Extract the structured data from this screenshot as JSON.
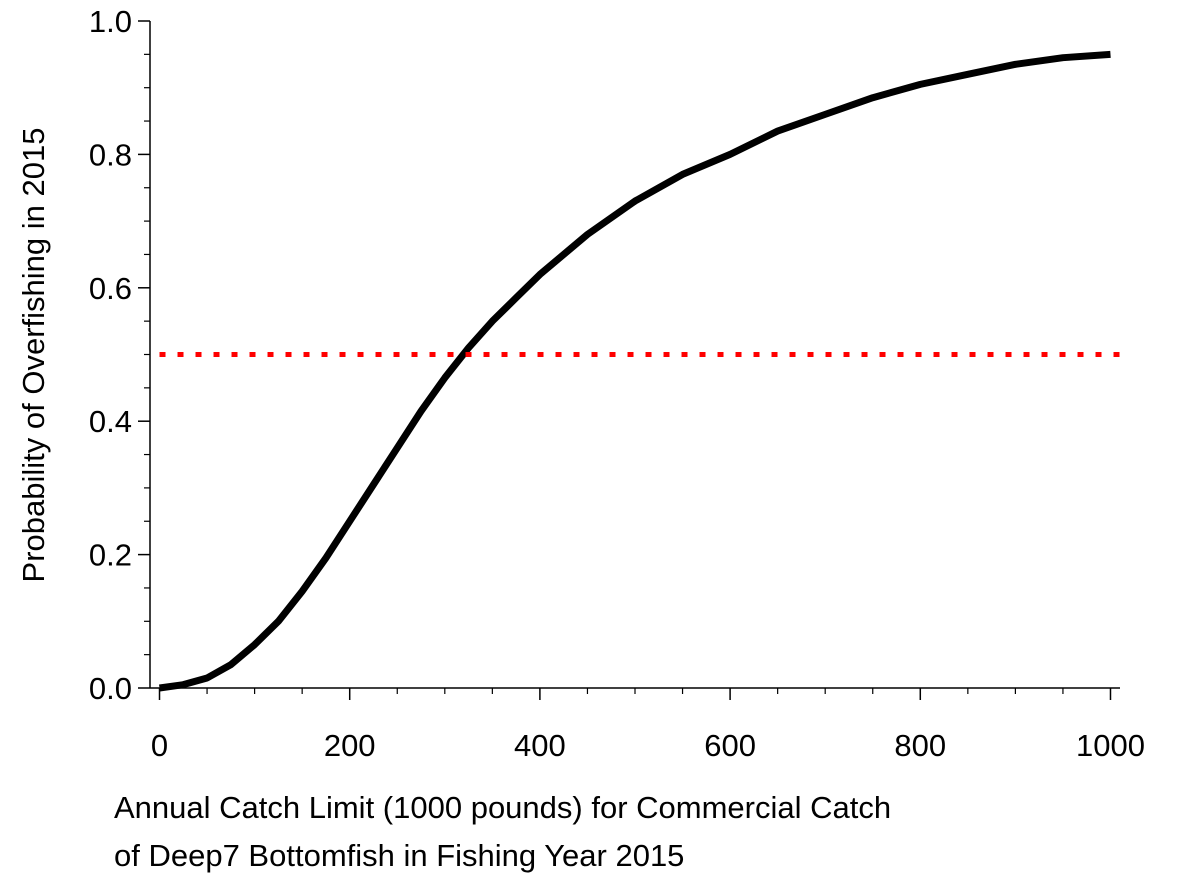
{
  "chart_data": {
    "type": "line",
    "ylabel": "Probability of Overfishing in 2015",
    "xlabel": [
      "Annual Catch Limit (1000 pounds) for Commercial Catch",
      "of Deep7 Bottomfish in Fishing Year 2015"
    ],
    "series": [
      {
        "color": "#000000",
        "style": "solid",
        "x": [
          0,
          25,
          50,
          75,
          100,
          125,
          150,
          175,
          200,
          225,
          250,
          275,
          300,
          325,
          350,
          375,
          400,
          450,
          500,
          550,
          600,
          650,
          700,
          750,
          800,
          850,
          900,
          950,
          1000
        ],
        "values": [
          0.0,
          0.005,
          0.015,
          0.035,
          0.065,
          0.1,
          0.145,
          0.195,
          0.25,
          0.305,
          0.36,
          0.415,
          0.465,
          0.51,
          0.55,
          0.585,
          0.62,
          0.68,
          0.73,
          0.77,
          0.8,
          0.835,
          0.86,
          0.885,
          0.905,
          0.92,
          0.935,
          0.945,
          0.95
        ]
      },
      {
        "color": "#ff0000",
        "style": "dotted",
        "x": [
          0,
          1010
        ],
        "values": [
          0.5,
          0.5
        ]
      }
    ],
    "xlim": [
      -10,
      1010
    ],
    "ylim": [
      0,
      1
    ],
    "xticks": [
      0,
      200,
      400,
      600,
      800,
      1000
    ],
    "yticks": [
      {
        "value": 0,
        "label": "0.0"
      },
      0.2,
      0.4,
      0.6,
      0.8,
      {
        "value": 1,
        "label": "1.0"
      }
    ],
    "xminorticks": [
      50,
      100,
      150,
      250,
      300,
      350,
      450,
      500,
      550,
      650,
      700,
      750,
      850,
      900,
      950
    ],
    "yminorticks": [
      0.05,
      0.1,
      0.15,
      0.25,
      0.3,
      0.35,
      0.45,
      0.5,
      0.55,
      0.65,
      0.7,
      0.75,
      0.85,
      0.9,
      0.95
    ]
  }
}
